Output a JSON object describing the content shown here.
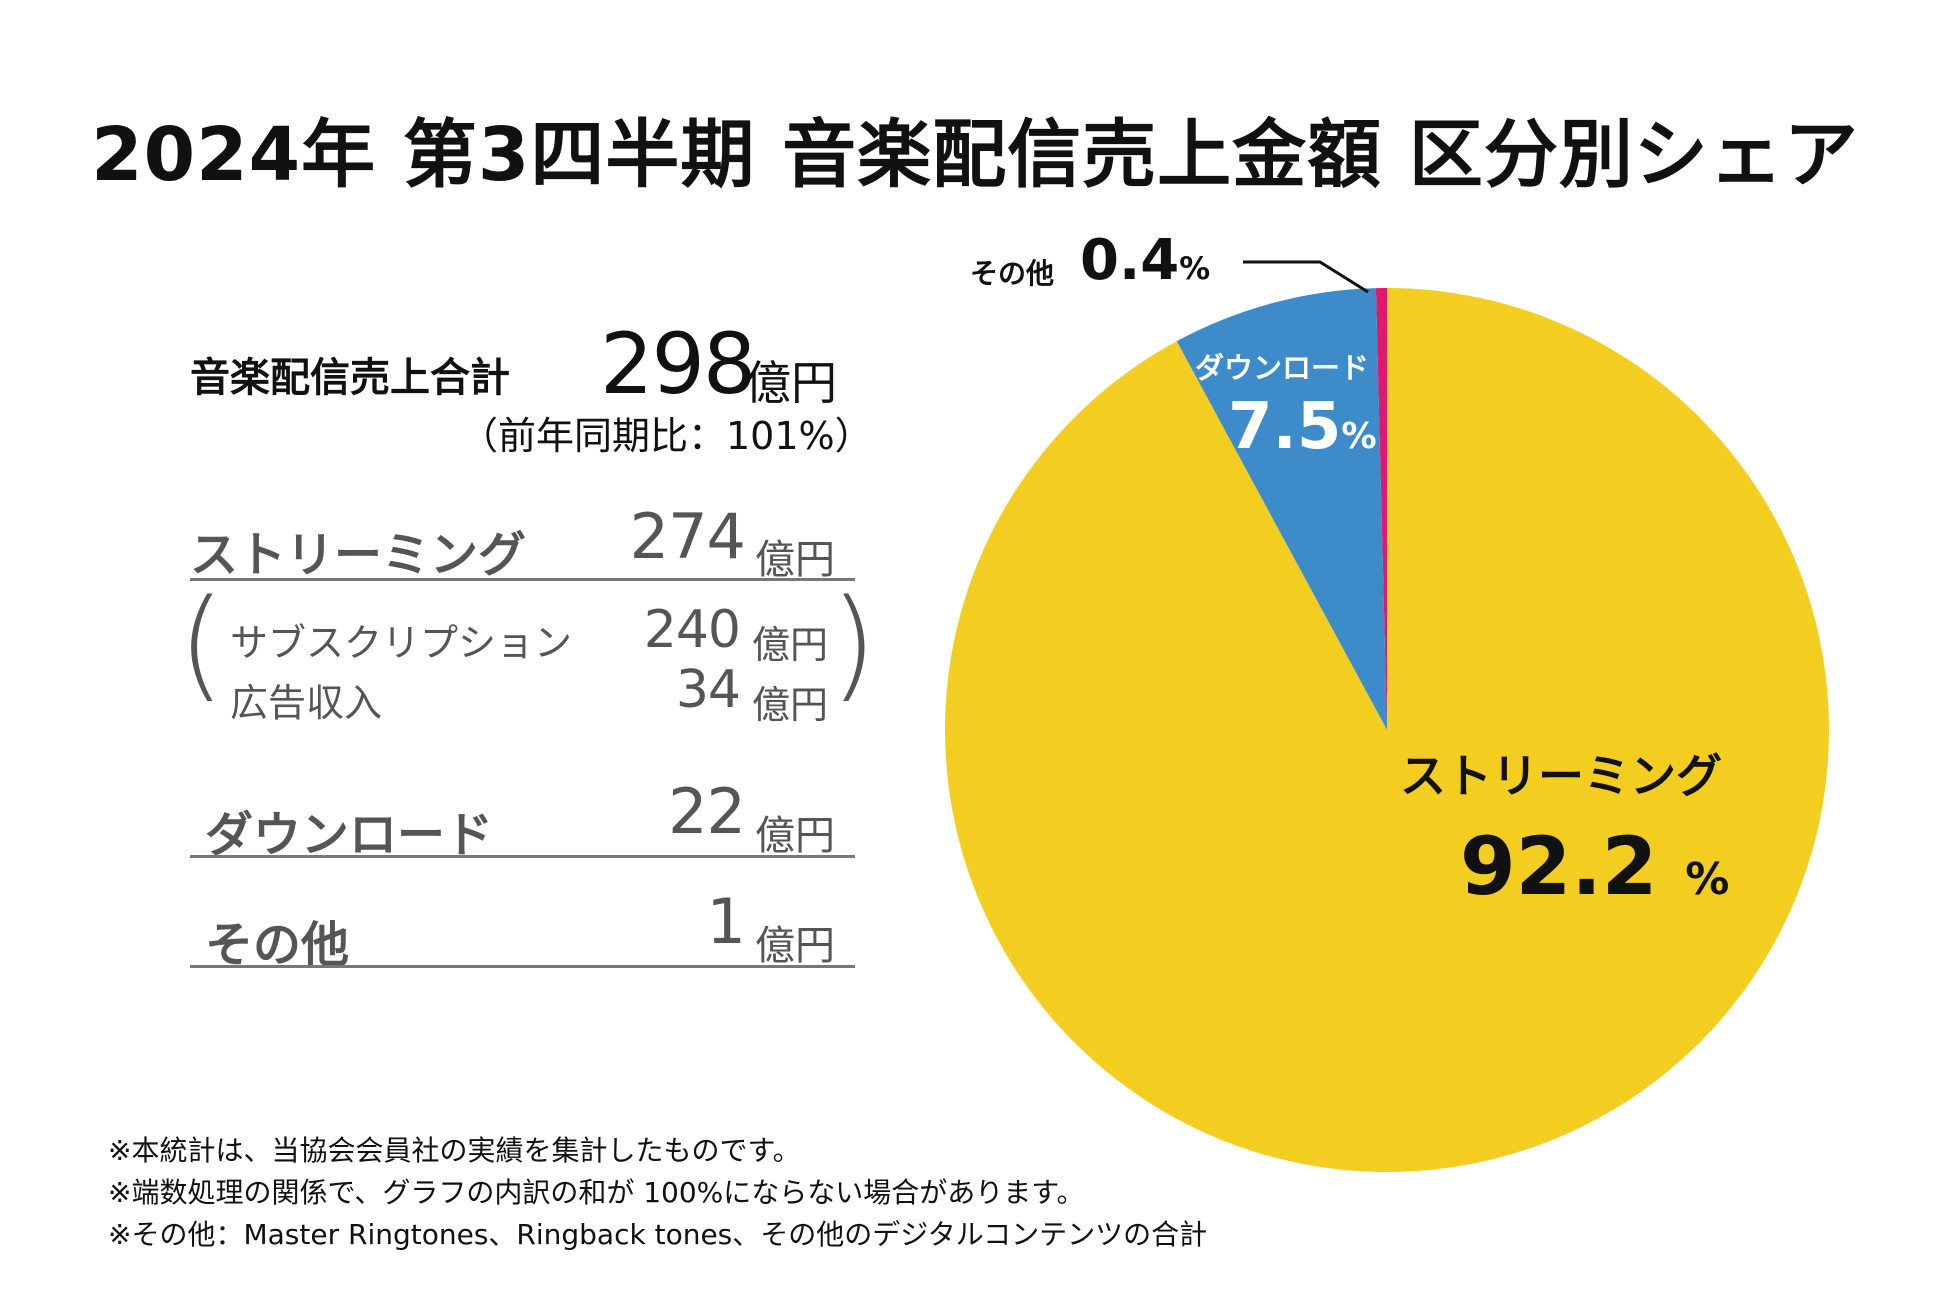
{
  "title": "2024年 第3四半期 音楽配信売上金額 区分別シェア",
  "summary": {
    "total_label": "音楽配信売上合計",
    "total_value": "298",
    "unit": "億円",
    "yoy": "（前年同期比：101%）",
    "rows": [
      {
        "label": "ストリーミング",
        "value": "274",
        "unit": "億円"
      },
      {
        "label": "ダウンロード",
        "value": "22",
        "unit": "億円"
      },
      {
        "label": "その他",
        "value": "1",
        "unit": "億円"
      }
    ],
    "sub_rows": [
      {
        "label": "サブスクリプション",
        "value": "240",
        "unit": "億円"
      },
      {
        "label": "広告収入",
        "value": "34",
        "unit": "億円"
      }
    ]
  },
  "chart_data": {
    "type": "pie",
    "title": "2024年 第3四半期 音楽配信売上金額 区分別シェア",
    "slices": [
      {
        "name": "その他",
        "value": 0.4,
        "label": "0.4",
        "color": "#E0196E"
      },
      {
        "name": "ダウンロード",
        "value": 7.5,
        "label": "7.5",
        "color": "#3D8BC9"
      },
      {
        "name": "ストリーミング",
        "value": 92.2,
        "label": "92.2",
        "color": "#F3CD1F"
      }
    ],
    "percent_sign": "%"
  },
  "notes": [
    "※本統計は、当協会会員社の実績を集計したものです。",
    "※端数処理の関係で、グラフの内訳の和が 100%にならない場合があります。",
    "※その他：Master Ringtones、Ringback tones、その他のデジタルコンテンツの合計"
  ]
}
